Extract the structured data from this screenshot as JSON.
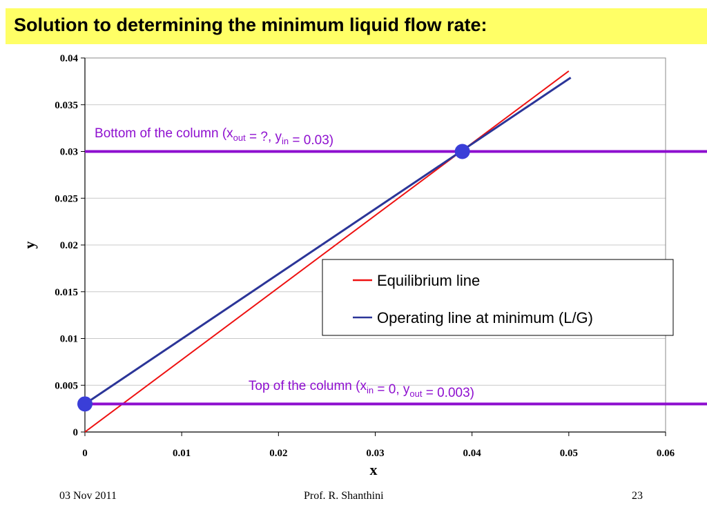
{
  "slide": {
    "title": "Solution to determining the minimum liquid flow rate:",
    "footer": {
      "date": "03 Nov 2011",
      "author": "Prof. R. Shanthini",
      "page": "23"
    }
  },
  "colors": {
    "title_background": "#ffff66",
    "equilibrium": "#ee1111",
    "operating": "#2b3598",
    "horizontal_lines": "#8e0fcf",
    "annotation_text": "#8e0fcf",
    "markers": "#3a3ed8",
    "grid": "#c8c8c8"
  },
  "chart_data": {
    "type": "line",
    "xlabel": "x",
    "ylabel": "y",
    "xlim": [
      0,
      0.06
    ],
    "ylim": [
      0,
      0.04
    ],
    "x_ticks": [
      "0",
      "0.01",
      "0.02",
      "0.03",
      "0.04",
      "0.05",
      "0.06"
    ],
    "y_ticks": [
      "0",
      "0.005",
      "0.01",
      "0.015",
      "0.02",
      "0.025",
      "0.03",
      "0.035",
      "0.04"
    ],
    "grid": "horizontal",
    "series": [
      {
        "name": "Equilibrium line",
        "x": [
          0,
          0.05
        ],
        "y": [
          0,
          0.0386
        ]
      },
      {
        "name": "Operating line at minimum (L/G)",
        "x": [
          0,
          0.0502
        ],
        "y": [
          0.003,
          0.0379
        ]
      }
    ],
    "horizontal_lines": [
      {
        "y": 0.03
      },
      {
        "y": 0.003
      }
    ],
    "markers": [
      {
        "x": 0.039,
        "y": 0.03
      },
      {
        "x": 0,
        "y": 0.003
      }
    ],
    "annotations": {
      "bottom": {
        "pre": "Bottom of the column (x",
        "sub1": "out",
        "mid": " = ?, y",
        "sub2": "in",
        "post": " = 0.03)",
        "x": 0.001,
        "y": 0.0315
      },
      "top": {
        "pre": "Top of the column (x",
        "sub1": "in",
        "mid": " = 0, y",
        "sub2": "out",
        "post": " = 0.003)",
        "x": 0.0169,
        "y": 0.0045
      }
    },
    "legend": {
      "position": "right",
      "entries": [
        "Equilibrium line",
        "Operating line at minimum (L/G)"
      ]
    }
  }
}
